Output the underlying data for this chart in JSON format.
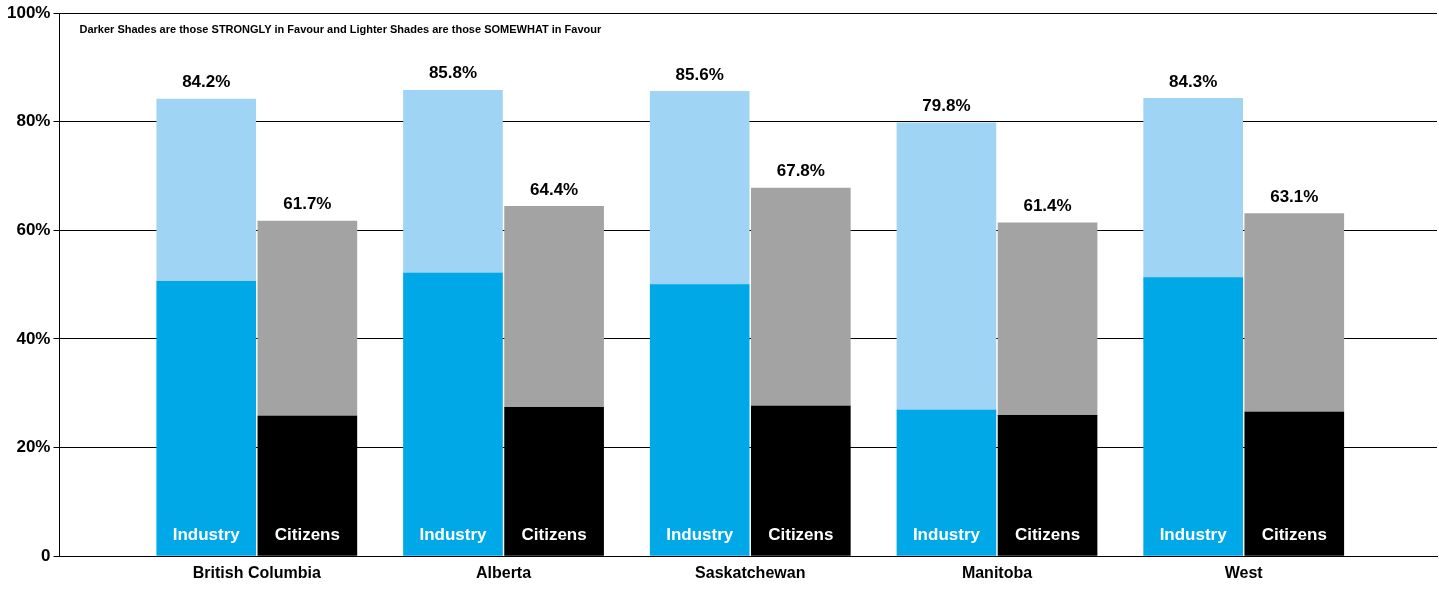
{
  "chart_data": {
    "type": "bar",
    "title": "Darker Shades are those STRONGLY in Favour and Lighter Shades are those SOMEWHAT in Favour",
    "categories": [
      "Industry",
      "Citizens",
      "Industry",
      "Citizens",
      "Industry",
      "Citizens",
      "Industry",
      "Citizens",
      "Industry",
      "Citizens"
    ],
    "annotations": [
      "British Columbia",
      "Alberta",
      "Saskatchewan",
      "Manitoba",
      "West"
    ],
    "stacked": true,
    "series": [
      {
        "colors": [
          "#00a8e8",
          "#000000",
          "#00a8e8",
          "#000000",
          "#00a8e8",
          "#000000",
          "#00a8e8",
          "#000000",
          "#00a8e8",
          "#000000"
        ],
        "values": [
          50.6,
          25.8,
          52.1,
          27.4,
          50.0,
          27.6,
          26.9,
          25.9,
          51.3,
          26.5
        ]
      },
      {
        "colors": [
          "#9fd4f5",
          "#a3a3a3",
          "#9fd4f5",
          "#a3a3a3",
          "#9fd4f5",
          "#a3a3a3",
          "#9fd4f5",
          "#a3a3a3",
          "#9fd4f5",
          "#a3a3a3"
        ],
        "values": [
          33.6,
          35.9,
          33.7,
          37.0,
          35.6,
          40.2,
          52.9,
          35.5,
          33.0,
          36.6
        ]
      }
    ],
    "totals": [
      "84.2%",
      "61.7%",
      "85.8%",
      "64.4%",
      "85.6%",
      "67.8%",
      "79.8%",
      "61.4%",
      "84.3%",
      "63.1%"
    ],
    "ylim": [
      0,
      100
    ],
    "yticks": [
      {
        "value": 0,
        "label": "0"
      },
      {
        "value": 20,
        "label": "20%"
      },
      {
        "value": 40,
        "label": "40%"
      },
      {
        "value": 60,
        "label": "60%"
      },
      {
        "value": 80,
        "label": "80%"
      },
      {
        "value": 100,
        "label": "100%"
      }
    ],
    "grid": "y",
    "legend": false
  }
}
